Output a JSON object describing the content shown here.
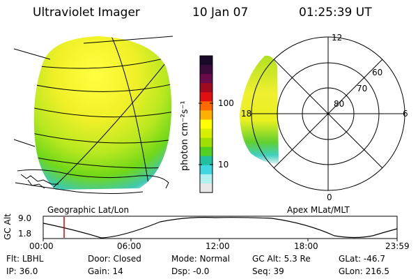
{
  "header": {
    "instrument": "Ultraviolet Imager",
    "date": "10 Jan 07",
    "time": "01:25:39 UT"
  },
  "colorbar": {
    "unit_label": "photon cm⁻²s⁻¹",
    "ticks": [
      "100",
      "10"
    ],
    "colors": [
      "#1a0a2a",
      "#3a0a3a",
      "#6a0a4a",
      "#a00a20",
      "#e01010",
      "#ff6a00",
      "#ffb000",
      "#ffff00",
      "#d8f000",
      "#a0e000",
      "#50d020",
      "#20c0a0",
      "#40d8e0",
      "#b0f0f0",
      "#e8e8e8"
    ]
  },
  "geo_panel": {
    "label": "Geographic Lat/Lon"
  },
  "polar_panel": {
    "label": "Apex MLat/MLT",
    "mlt_labels": {
      "top": "12",
      "right": "6",
      "bottom": "0",
      "left": "18"
    },
    "lat_labels": [
      "60",
      "70",
      "80"
    ]
  },
  "altitude_plot": {
    "ylabel": "GC Alt",
    "yticks": [
      "9.0",
      "1.8"
    ],
    "xticks": [
      "00:00",
      "06:00",
      "12:00",
      "18:00",
      "23:59"
    ],
    "marker_time": "01:25",
    "marker_color": "#e00000"
  },
  "status": {
    "row1": [
      {
        "label": "Flt:",
        "value": "LBHL"
      },
      {
        "label": "Door:",
        "value": "Closed"
      },
      {
        "label": "Mode:",
        "value": "Normal"
      },
      {
        "label": "GC Alt:",
        "value": "5.3 Re"
      },
      {
        "label": "GLat:",
        "value": "-46.7"
      }
    ],
    "row2": [
      {
        "label": "IP:",
        "value": "36.0"
      },
      {
        "label": "Gain:",
        "value": "14"
      },
      {
        "label": "Dsp:",
        "value": "-0.0"
      },
      {
        "label": "Seq:",
        "value": "39"
      },
      {
        "label": "GLon:",
        "value": "216.5"
      }
    ]
  }
}
